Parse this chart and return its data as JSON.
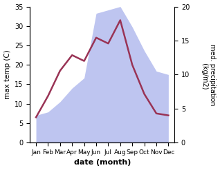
{
  "months": [
    "Jan",
    "Feb",
    "Mar",
    "Apr",
    "May",
    "Jun",
    "Jul",
    "Aug",
    "Sep",
    "Oct",
    "Nov",
    "Dec"
  ],
  "temperature": [
    6.5,
    12.0,
    18.5,
    22.5,
    21.0,
    27.0,
    25.5,
    31.5,
    20.0,
    12.5,
    7.5,
    7.0
  ],
  "precipitation_kg": [
    4.0,
    4.5,
    6.0,
    8.0,
    9.5,
    19.0,
    19.5,
    20.0,
    17.0,
    13.5,
    10.5,
    10.0
  ],
  "temp_color": "#993355",
  "precip_color": "#b3bbee",
  "precip_alpha": 0.85,
  "temp_linewidth": 1.8,
  "ylim_left": [
    0,
    35
  ],
  "ylim_right": [
    0,
    20
  ],
  "yticks_left": [
    0,
    5,
    10,
    15,
    20,
    25,
    30,
    35
  ],
  "yticks_right": [
    0,
    5,
    10,
    15,
    20
  ],
  "xlabel": "date (month)",
  "ylabel_left": "max temp (C)",
  "ylabel_right": "med. precipitation\n (kg/m2)",
  "bg_color": "#ffffff"
}
